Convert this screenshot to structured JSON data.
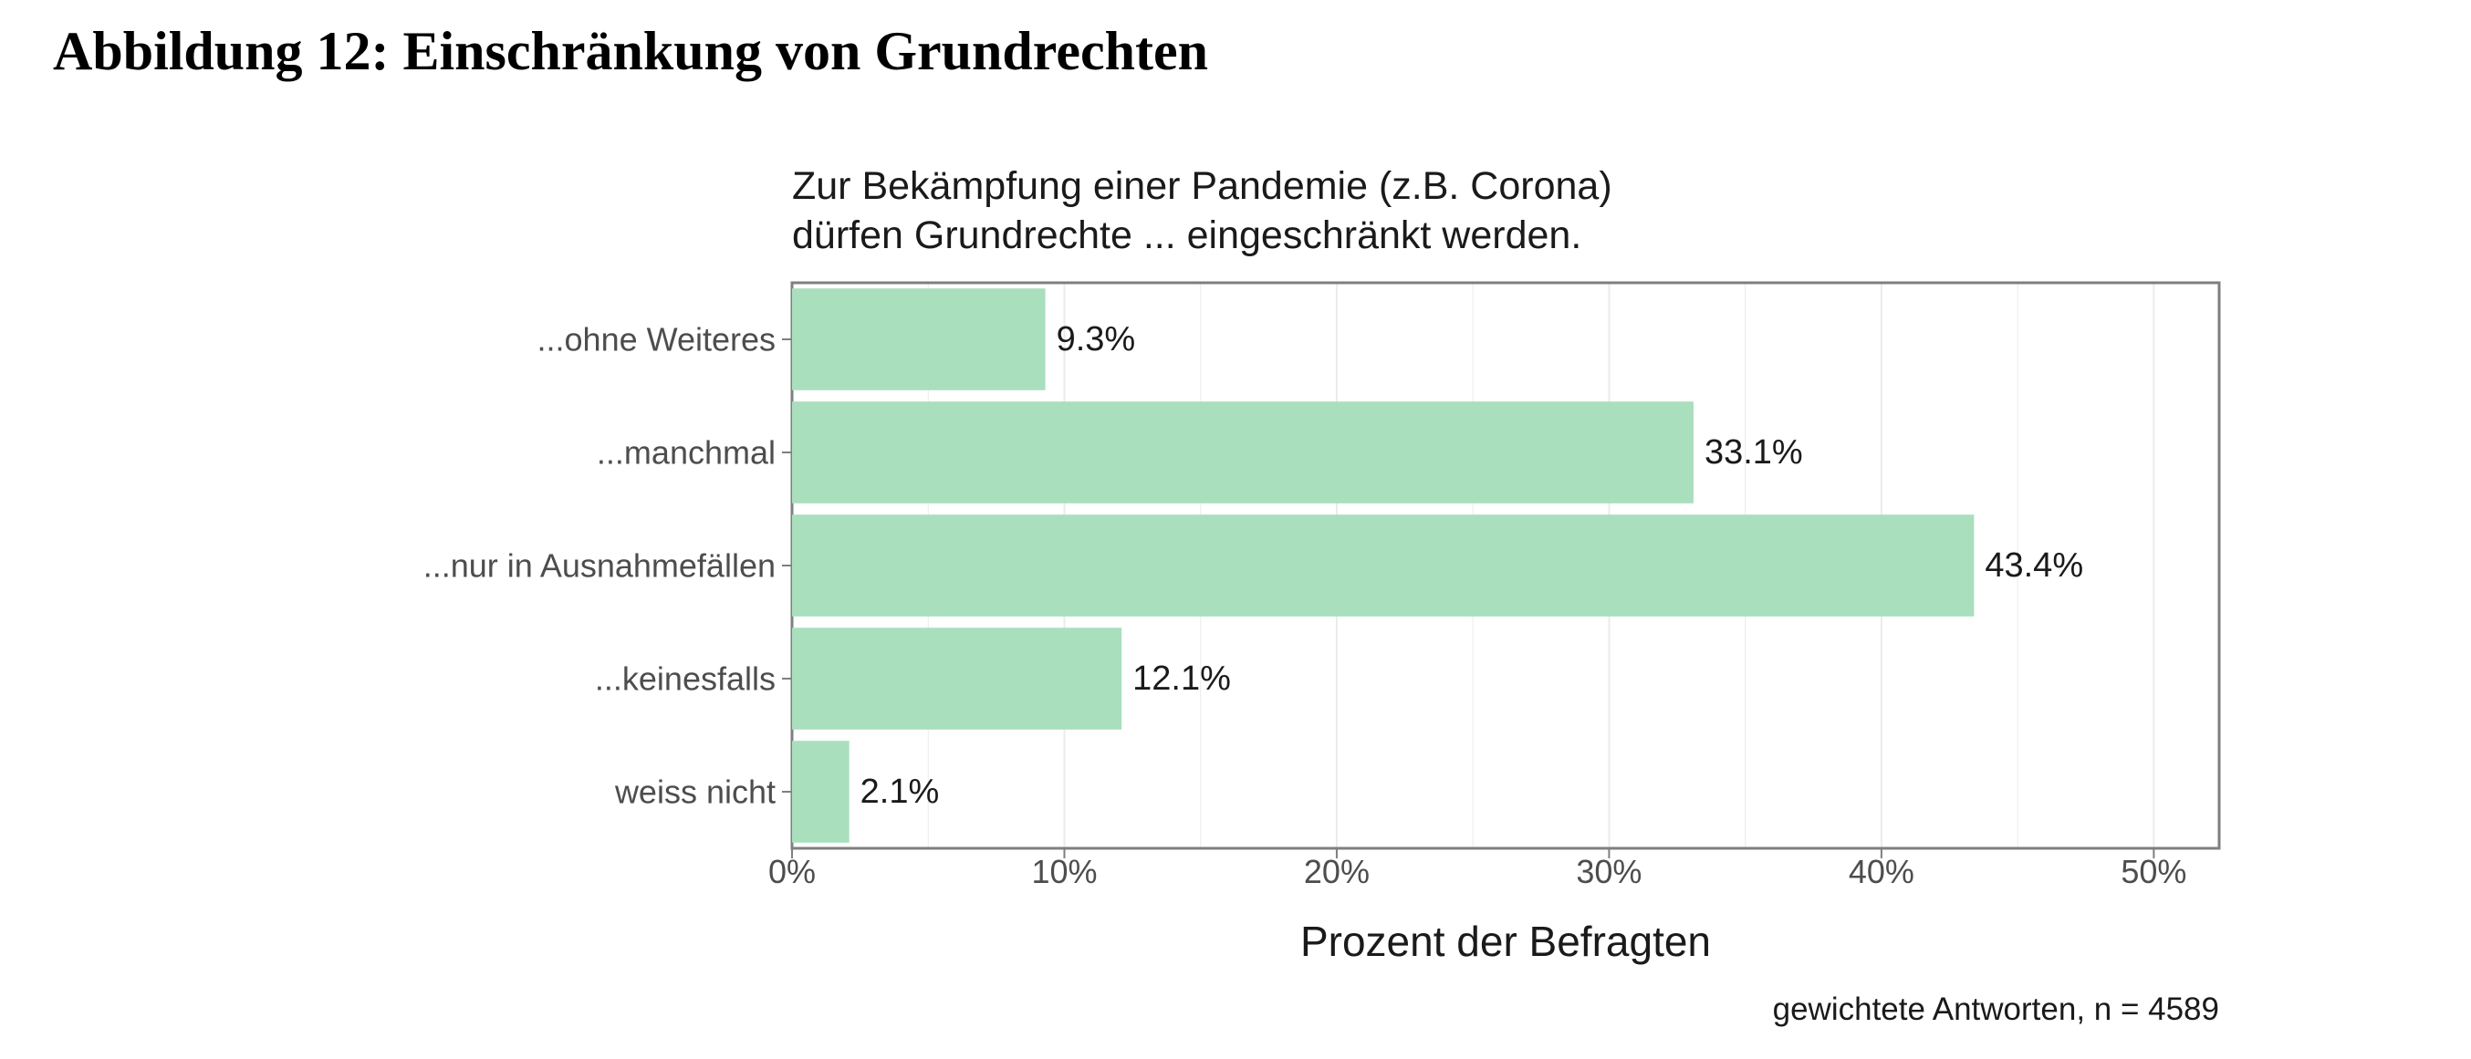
{
  "heading": "Abbildung 12: Einschränkung von Grundrechten",
  "colors": {
    "bar": "#a9dfbd",
    "panel_border": "#7f7f7f",
    "grid": "#ebebeb",
    "axis_text": "#4d4d4d",
    "text": "#1a1a1a"
  },
  "chart_data": {
    "type": "bar",
    "orientation": "horizontal",
    "title": "Zur Bekämpfung einer Pandemie (z.B. Corona)\ndürfen Grundrechte ... eingeschränkt werden.",
    "categories": [
      "...ohne Weiteres",
      "...manchmal",
      "...nur in Ausnahmefällen",
      "...keinesfalls",
      "weiss nicht"
    ],
    "values": [
      9.3,
      33.1,
      43.4,
      12.1,
      2.1
    ],
    "data_labels": [
      "9.3%",
      "33.1%",
      "43.4%",
      "12.1%",
      "2.1%"
    ],
    "xlabel": "Prozent der Befragten",
    "ylabel": "",
    "xlim": [
      0,
      52.4
    ],
    "x_ticks": [
      0,
      10,
      20,
      30,
      40,
      50
    ],
    "x_tick_labels": [
      "0%",
      "10%",
      "20%",
      "30%",
      "40%",
      "50%"
    ],
    "caption": "gewichtete Antworten, n = 4589",
    "grid": true
  }
}
